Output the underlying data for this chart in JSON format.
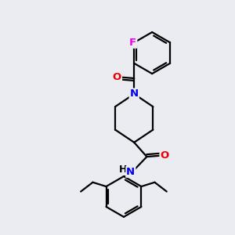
{
  "background_color": "#eaecf2",
  "bond_color": "#000000",
  "atom_colors": {
    "N": "#0000ee",
    "O": "#ee0000",
    "F": "#ee00ee",
    "C": "#000000"
  },
  "line_width": 1.6,
  "font_size": 9.5,
  "figsize": [
    3.0,
    3.0
  ],
  "dpi": 100
}
